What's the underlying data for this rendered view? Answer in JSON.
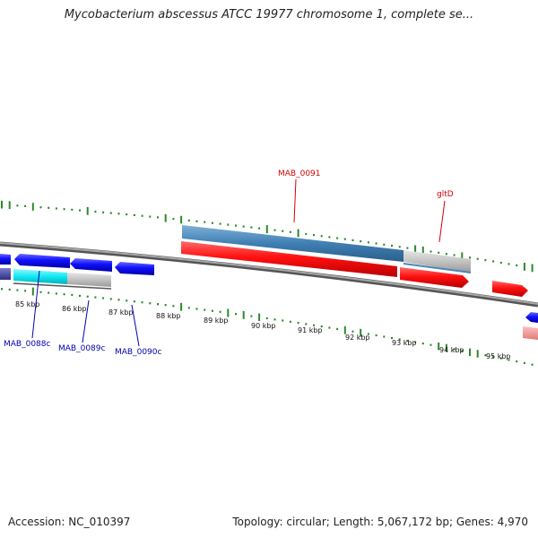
{
  "title": "Mycobacterium abscessus ATCC 19977 chromosome 1, complete se...",
  "footer": {
    "accession": "Accession: NC_010397",
    "summary": "Topology: circular; Length: 5,067,172 bp; Genes: 4,970"
  },
  "scale_labels": [
    "85 kbp",
    "86 kbp",
    "87 kbp",
    "88 kbp",
    "89 kbp",
    "90 kbp",
    "91 kbp",
    "92 kbp",
    "93 kbp",
    "94 kbp",
    "95 kbp"
  ],
  "gene_labels": {
    "mab0091": "MAB_0091",
    "gltd": "gltD",
    "mab0088c": "MAB_0088c",
    "mab0089c": "MAB_0089c",
    "mab0090c": "MAB_0090c"
  },
  "colors": {
    "forward_gene": "#ff1a1a",
    "reverse_gene": "#1a1aff",
    "feature_blue": "#4a86b8",
    "feature_cyan": "#22e8f0",
    "feature_grey": "#c0c0c0",
    "backbone": "#888888",
    "gc_tick": "#2a8a2a"
  }
}
